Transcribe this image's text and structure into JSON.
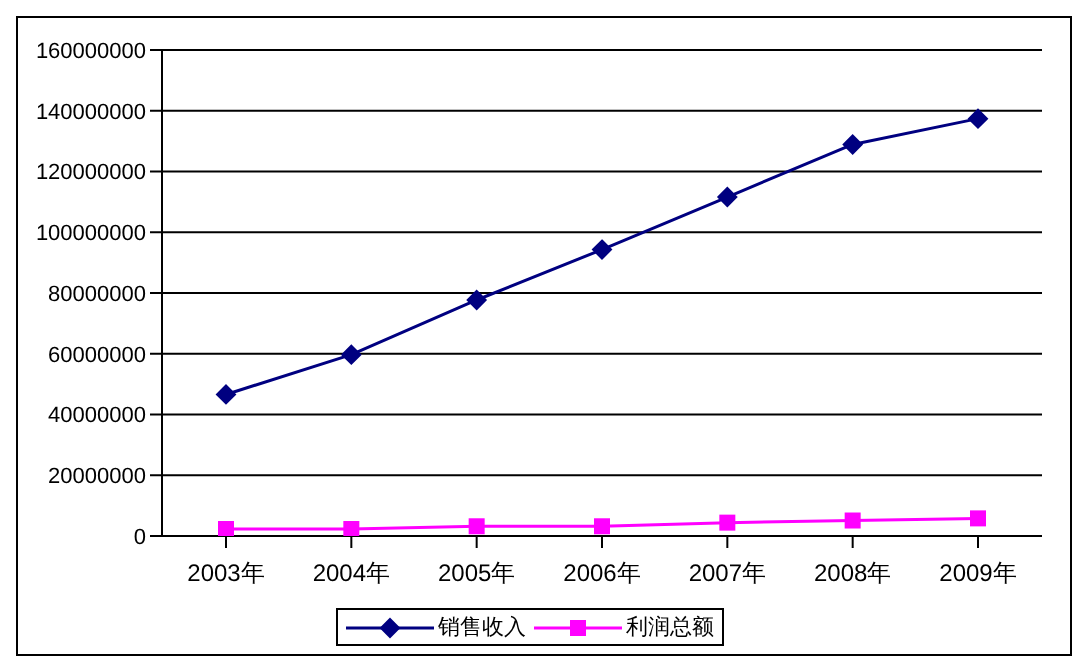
{
  "chart_data": {
    "type": "line",
    "categories": [
      "2003年",
      "2004年",
      "2005年",
      "2006年",
      "2007年",
      "2008年",
      "2009年"
    ],
    "series": [
      {
        "name": "销售收入",
        "color": "#000080",
        "marker": "diamond",
        "values": [
          46600000,
          59700000,
          77700000,
          94300000,
          111600000,
          128900000,
          137400000
        ]
      },
      {
        "name": "利润总额",
        "color": "#ff00ff",
        "marker": "square",
        "values": [
          2300000,
          2300000,
          3200000,
          3200000,
          4400000,
          5100000,
          5800000
        ]
      }
    ],
    "ylim": [
      0,
      160000000
    ],
    "yticks": [
      0,
      20000000,
      40000000,
      60000000,
      80000000,
      100000000,
      120000000,
      140000000,
      160000000
    ],
    "grid": "y",
    "legend": "bottom"
  }
}
